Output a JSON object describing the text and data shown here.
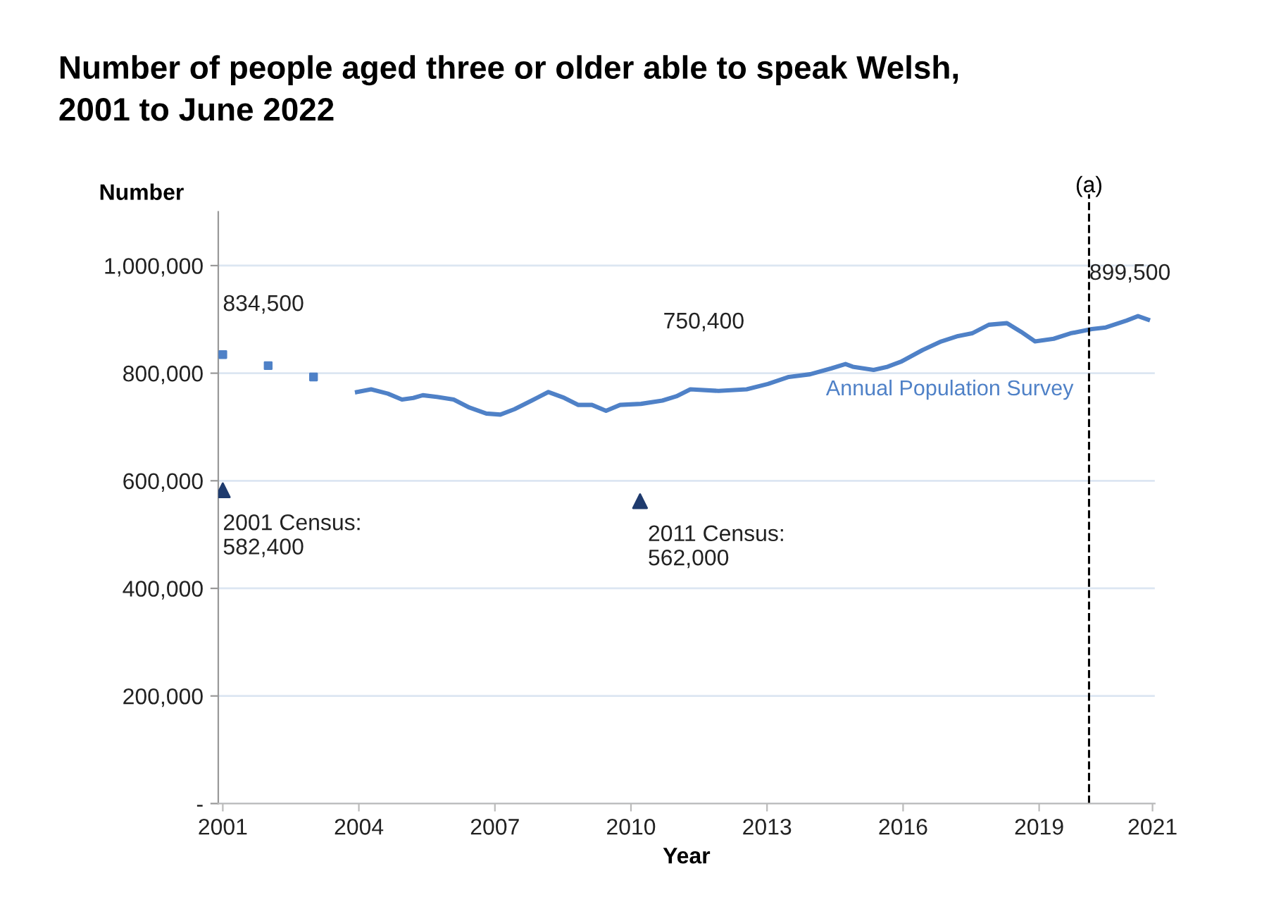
{
  "chart_data": {
    "type": "line",
    "title": "Number of people aged three or older able to speak Welsh,\n2001 to June 2022",
    "xlabel": "Year",
    "ylabel": "Number",
    "xlim": [
      2000.9,
      2021.55
    ],
    "xticks": [
      2001,
      2004,
      2007,
      2010,
      2013,
      2016,
      2019,
      {
        "value": 2021.5,
        "label": "2021"
      }
    ],
    "ylim": [
      0,
      1100000
    ],
    "yticks": [
      {
        "value": 0,
        "label": "-"
      },
      {
        "value": 200000,
        "label": "200,000"
      },
      {
        "value": 400000,
        "label": "400,000"
      },
      {
        "value": 600000,
        "label": "600,000"
      },
      {
        "value": 800000,
        "label": "800,000"
      },
      {
        "value": 1000000,
        "label": "1,000,000"
      }
    ],
    "grid": "y",
    "legend": false,
    "series": [
      {
        "type": "scatter",
        "marker": "square",
        "color": "#4f81c7",
        "x": [
          2001,
          2002,
          2003
        ],
        "values": [
          834500,
          814000,
          793000
        ]
      },
      {
        "name": "Annual Population Survey",
        "color": "#4f81c7",
        "line_style": "solid",
        "x": [
          2003.96,
          2004.27,
          2004.64,
          2004.95,
          2005.2,
          2005.41,
          2005.72,
          2006.09,
          2006.44,
          2006.81,
          2007.12,
          2007.43,
          2007.81,
          2008.18,
          2008.53,
          2008.84,
          2009.14,
          2009.45,
          2009.76,
          2010.22,
          2010.69,
          2011.0,
          2011.31,
          2011.93,
          2012.55,
          2013.02,
          2013.48,
          2013.95,
          2014.42,
          2014.73,
          2014.89,
          2015.35,
          2015.66,
          2015.97,
          2016.43,
          2016.84,
          2017.21,
          2017.52,
          2017.89,
          2018.29,
          2018.6,
          2018.91,
          2019.32,
          2019.69,
          2020.16,
          2020.47,
          2020.93,
          2021.18,
          2021.4
        ],
        "values": [
          765000,
          770000,
          762000,
          751000,
          754000,
          759000,
          756000,
          751000,
          736000,
          725000,
          723000,
          733000,
          749000,
          765000,
          754000,
          741000,
          741000,
          730000,
          741000,
          743000,
          749000,
          757000,
          770000,
          767000,
          770000,
          780000,
          793000,
          798000,
          809000,
          817000,
          812000,
          806000,
          812000,
          822000,
          843000,
          859000,
          869000,
          874000,
          890000,
          893000,
          877000,
          859000,
          864000,
          874000,
          882000,
          885000,
          898000,
          906000,
          899500
        ]
      },
      {
        "type": "scatter",
        "marker": "triangle",
        "color": "#1f3b6e",
        "x": [
          2001,
          2010.2
        ],
        "values": [
          582400,
          562000
        ]
      }
    ],
    "ref_lines": [
      {
        "axis": "x",
        "value": 2020.1,
        "label": "(a)",
        "color": "#000000",
        "line_style": "dashed"
      }
    ],
    "annotations": [
      {
        "text": "834,500",
        "x": 2001,
        "y": 834500
      },
      "750,400",
      {
        "text": "899,500",
        "x": 2021.4,
        "y": 899500
      },
      {
        "text": "2001 Census:\n582,400",
        "x": 2001,
        "y": 582400
      },
      {
        "text": "2011 Census:\n562,000",
        "x": 2010.2,
        "y": 562000
      }
    ]
  }
}
